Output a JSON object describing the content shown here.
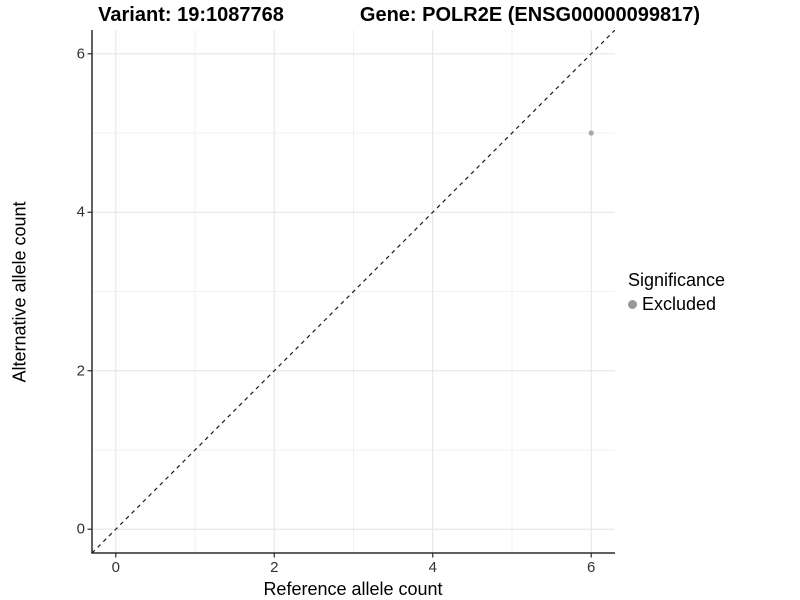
{
  "header": {
    "variant_title": "Variant: 19:1087768",
    "gene_title": "Gene: POLR2E (ENSG00000099817)"
  },
  "chart_data": {
    "type": "scatter",
    "title_left": "Variant: 19:1087768",
    "title_right": "Gene: POLR2E (ENSG00000099817)",
    "xlabel": "Reference allele count",
    "ylabel": "Alternative allele count",
    "xlim": [
      -0.3,
      6.3
    ],
    "ylim": [
      -0.3,
      6.3
    ],
    "x_major_ticks": [
      0,
      2,
      4,
      6
    ],
    "y_major_ticks": [
      0,
      2,
      4,
      6
    ],
    "x_minor_ticks": [
      1,
      3,
      5
    ],
    "y_minor_ticks": [
      1,
      3,
      5
    ],
    "grid": "on",
    "series": [
      {
        "name": "Excluded",
        "color": "#a8a8a8",
        "points": [
          {
            "x": 6,
            "y": 5
          }
        ]
      }
    ],
    "reference_line": {
      "style": "dashed",
      "color": "#1a1a1a",
      "from": [
        -0.3,
        -0.3
      ],
      "to": [
        6.3,
        6.3
      ],
      "equation": "y = x"
    },
    "legend": {
      "title": "Significance",
      "position": "right",
      "items": [
        {
          "label": "Excluded",
          "color": "#999999"
        }
      ]
    },
    "colors": {
      "axis_line": "#2b2b2b",
      "major_grid": "#e6e6e6",
      "minor_grid": "#f2f2f2",
      "tick_label": "#333333",
      "point": "#a8a8a8"
    }
  }
}
